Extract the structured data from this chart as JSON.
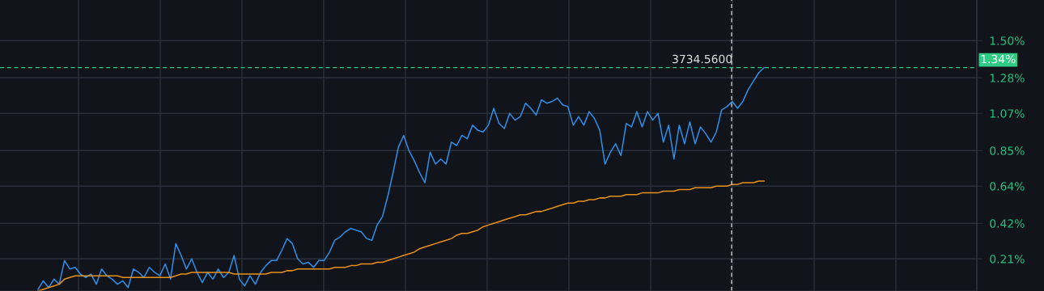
{
  "chart_data": {
    "type": "line",
    "categories": [
      null,
      null,
      null,
      null,
      null,
      null,
      null,
      null,
      null,
      null,
      null,
      null,
      null,
      null,
      null,
      null,
      null,
      null,
      null,
      null,
      null,
      null,
      null,
      null,
      null,
      null,
      null,
      null,
      null,
      null,
      null,
      null,
      null,
      null,
      null,
      null,
      null,
      null,
      null,
      null,
      null,
      null,
      null,
      null,
      null,
      null,
      null,
      null,
      null,
      null,
      null,
      null,
      null,
      null,
      null,
      null,
      null,
      null,
      null,
      null,
      null,
      null,
      null,
      null,
      null,
      null,
      null,
      null,
      null,
      null,
      null,
      null,
      null,
      null,
      null,
      null,
      null,
      null,
      null,
      null,
      null,
      null,
      null,
      null,
      null,
      null,
      null,
      null,
      null,
      null,
      null,
      null,
      null,
      null,
      null,
      null,
      null,
      null,
      null,
      null,
      null,
      null,
      null,
      null,
      null,
      null,
      null,
      null,
      null,
      null,
      null,
      null,
      null,
      null,
      null,
      null,
      null,
      null,
      null,
      null,
      null,
      null,
      null,
      null,
      null,
      null,
      null,
      null,
      null,
      null,
      null,
      null,
      null,
      null,
      null,
      null,
      null,
      null
    ],
    "ylim": [
      0.02,
      1.74
    ],
    "yticks": [
      {
        "value": 0.21,
        "label": "0.21%"
      },
      {
        "value": 0.42,
        "label": "0.42%"
      },
      {
        "value": 0.64,
        "label": "0.64%"
      },
      {
        "value": 0.85,
        "label": "0.85%"
      },
      {
        "value": 1.07,
        "label": "1.07%"
      },
      {
        "value": 1.28,
        "label": "1.28%"
      },
      {
        "value": 1.5,
        "label": "1.50%"
      }
    ],
    "tick_labels": "y",
    "grid": "y",
    "marker": "none",
    "line_style": "solid",
    "series": [
      {
        "color": "#2f8ee6",
        "values": [
          0.03,
          0.08,
          0.04,
          0.09,
          0.06,
          0.2,
          0.15,
          0.16,
          0.12,
          0.1,
          0.12,
          0.06,
          0.15,
          0.11,
          0.09,
          0.06,
          0.08,
          0.04,
          0.15,
          0.13,
          0.1,
          0.16,
          0.13,
          0.11,
          0.18,
          0.09,
          0.3,
          0.23,
          0.15,
          0.21,
          0.13,
          0.07,
          0.13,
          0.09,
          0.15,
          0.1,
          0.13,
          0.23,
          0.09,
          0.05,
          0.11,
          0.06,
          0.13,
          0.17,
          0.2,
          0.2,
          0.26,
          0.33,
          0.3,
          0.21,
          0.18,
          0.19,
          0.16,
          0.2,
          0.2,
          0.25,
          0.32,
          0.34,
          0.37,
          0.39,
          0.38,
          0.37,
          0.33,
          0.32,
          0.41,
          0.46,
          0.58,
          0.72,
          0.87,
          0.94,
          0.85,
          0.79,
          0.72,
          0.66,
          0.84,
          0.77,
          0.8,
          0.77,
          0.9,
          0.88,
          0.94,
          0.92,
          1.0,
          0.97,
          0.96,
          1.0,
          1.1,
          1.01,
          0.98,
          1.07,
          1.03,
          1.05,
          1.13,
          1.1,
          1.06,
          1.15,
          1.13,
          1.14,
          1.16,
          1.12,
          1.11,
          1.0,
          1.05,
          1.0,
          1.08,
          1.04,
          0.97,
          0.77,
          0.84,
          0.89,
          0.82,
          1.01,
          0.99,
          1.08,
          0.99,
          1.08,
          1.03,
          1.07,
          0.9,
          1.0,
          0.8,
          1.0,
          0.89,
          1.02,
          0.89,
          0.99,
          0.95,
          0.9,
          0.96,
          1.09,
          1.11,
          1.14,
          1.1,
          1.14,
          1.21,
          1.26,
          1.31,
          1.34
        ]
      },
      {
        "color": "#e8901a",
        "values": [
          0.02,
          0.03,
          0.04,
          0.05,
          0.06,
          0.09,
          0.1,
          0.11,
          0.11,
          0.11,
          0.11,
          0.11,
          0.11,
          0.11,
          0.11,
          0.11,
          0.1,
          0.1,
          0.1,
          0.1,
          0.1,
          0.1,
          0.1,
          0.1,
          0.1,
          0.1,
          0.11,
          0.12,
          0.12,
          0.13,
          0.13,
          0.13,
          0.13,
          0.13,
          0.13,
          0.13,
          0.13,
          0.12,
          0.12,
          0.12,
          0.12,
          0.12,
          0.12,
          0.12,
          0.13,
          0.13,
          0.13,
          0.14,
          0.14,
          0.15,
          0.15,
          0.15,
          0.15,
          0.15,
          0.15,
          0.15,
          0.16,
          0.16,
          0.16,
          0.17,
          0.17,
          0.18,
          0.18,
          0.18,
          0.19,
          0.19,
          0.2,
          0.21,
          0.22,
          0.23,
          0.24,
          0.25,
          0.27,
          0.28,
          0.29,
          0.3,
          0.31,
          0.32,
          0.33,
          0.35,
          0.36,
          0.36,
          0.37,
          0.38,
          0.4,
          0.41,
          0.42,
          0.43,
          0.44,
          0.45,
          0.46,
          0.47,
          0.47,
          0.48,
          0.49,
          0.49,
          0.5,
          0.51,
          0.52,
          0.53,
          0.54,
          0.54,
          0.55,
          0.55,
          0.56,
          0.56,
          0.57,
          0.57,
          0.58,
          0.58,
          0.58,
          0.59,
          0.59,
          0.59,
          0.6,
          0.6,
          0.6,
          0.6,
          0.61,
          0.61,
          0.61,
          0.62,
          0.62,
          0.62,
          0.63,
          0.63,
          0.63,
          0.63,
          0.64,
          0.64,
          0.64,
          0.65,
          0.65,
          0.66,
          0.66,
          0.66,
          0.67,
          0.67
        ]
      }
    ],
    "ref_lines": [
      {
        "axis": "y",
        "value": 1.34,
        "label": "1.34%",
        "color": "#2ecc85",
        "line_style": "dashed"
      }
    ],
    "annotations": [
      "3734.5600"
    ]
  }
}
